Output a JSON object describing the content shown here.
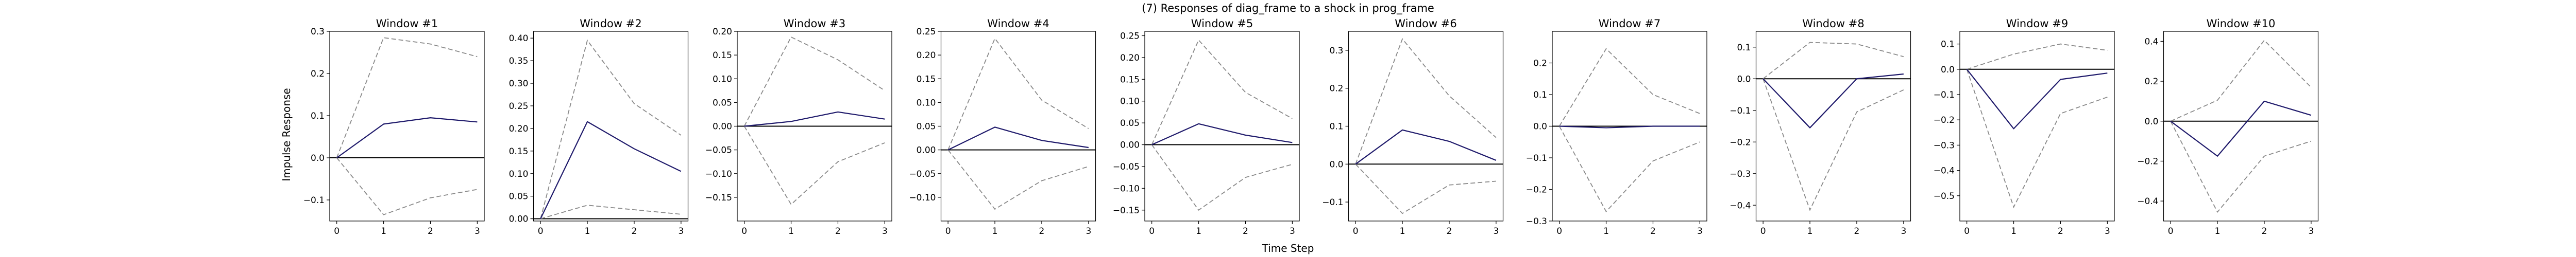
{
  "chart_data": {
    "type": "line",
    "title": "(7) Responses of diag_frame to a shock in prog_frame",
    "xlabel": "Time Step",
    "ylabel": "Impulse Response",
    "x": [
      0,
      1,
      2,
      3
    ],
    "grid": false,
    "panels": [
      {
        "title": "Window #1",
        "ylim": [
          -0.15,
          0.3
        ],
        "yticks": [
          -0.1,
          0.0,
          0.1,
          0.2,
          0.3
        ],
        "ytick_labels": [
          "−0.1",
          "0.0",
          "0.1",
          "0.2",
          "0.3"
        ],
        "series": [
          {
            "role": "irf",
            "values": [
              0.0,
              0.08,
              0.095,
              0.085
            ]
          },
          {
            "role": "upper",
            "values": [
              0.0,
              0.285,
              0.27,
              0.24
            ]
          },
          {
            "role": "lower",
            "values": [
              0.0,
              -0.135,
              -0.095,
              -0.075
            ]
          }
        ]
      },
      {
        "title": "Window #2",
        "ylim": [
          -0.005,
          0.415
        ],
        "yticks": [
          0.0,
          0.05,
          0.1,
          0.15,
          0.2,
          0.25,
          0.3,
          0.35,
          0.4
        ],
        "ytick_labels": [
          "0.00",
          "0.05",
          "0.10",
          "0.15",
          "0.20",
          "0.25",
          "0.30",
          "0.35",
          "0.40"
        ],
        "series": [
          {
            "role": "irf",
            "values": [
              0.0,
              0.215,
              0.155,
              0.105
            ]
          },
          {
            "role": "upper",
            "values": [
              0.0,
              0.395,
              0.255,
              0.185
            ]
          },
          {
            "role": "lower",
            "values": [
              0.0,
              0.03,
              0.02,
              0.01
            ]
          }
        ]
      },
      {
        "title": "Window #3",
        "ylim": [
          -0.2,
          0.2
        ],
        "yticks": [
          -0.15,
          -0.1,
          -0.05,
          0.0,
          0.05,
          0.1,
          0.15,
          0.2
        ],
        "ytick_labels": [
          "−0.15",
          "−0.10",
          "−0.05",
          "0.00",
          "0.05",
          "0.10",
          "0.15",
          "0.20"
        ],
        "series": [
          {
            "role": "irf",
            "values": [
              0.0,
              0.01,
              0.03,
              0.015
            ]
          },
          {
            "role": "upper",
            "values": [
              0.0,
              0.188,
              0.14,
              0.075
            ]
          },
          {
            "role": "lower",
            "values": [
              0.0,
              -0.165,
              -0.075,
              -0.035
            ]
          }
        ]
      },
      {
        "title": "Window #4",
        "ylim": [
          -0.15,
          0.25
        ],
        "yticks": [
          -0.1,
          -0.05,
          0.0,
          0.05,
          0.1,
          0.15,
          0.2,
          0.25
        ],
        "ytick_labels": [
          "−0.10",
          "−0.05",
          "0.00",
          "0.05",
          "0.10",
          "0.15",
          "0.20",
          "0.25"
        ],
        "series": [
          {
            "role": "irf",
            "values": [
              0.0,
              0.048,
              0.02,
              0.005
            ]
          },
          {
            "role": "upper",
            "values": [
              0.0,
              0.235,
              0.105,
              0.045
            ]
          },
          {
            "role": "lower",
            "values": [
              0.0,
              -0.125,
              -0.065,
              -0.035
            ]
          }
        ]
      },
      {
        "title": "Window #5",
        "ylim": [
          -0.175,
          0.26
        ],
        "yticks": [
          -0.15,
          -0.1,
          -0.05,
          0.0,
          0.05,
          0.1,
          0.15,
          0.2,
          0.25
        ],
        "ytick_labels": [
          "−0.15",
          "−0.10",
          "−0.05",
          "0.00",
          "0.05",
          "0.10",
          "0.15",
          "0.20",
          "0.25"
        ],
        "series": [
          {
            "role": "irf",
            "values": [
              0.0,
              0.048,
              0.022,
              0.005
            ]
          },
          {
            "role": "upper",
            "values": [
              0.0,
              0.24,
              0.12,
              0.06
            ]
          },
          {
            "role": "lower",
            "values": [
              0.0,
              -0.15,
              -0.075,
              -0.045
            ]
          }
        ]
      },
      {
        "title": "Window #6",
        "ylim": [
          -0.15,
          0.35
        ],
        "yticks": [
          -0.1,
          0.0,
          0.1,
          0.2,
          0.3
        ],
        "ytick_labels": [
          "−0.1",
          "0.0",
          "0.1",
          "0.2",
          "0.3"
        ],
        "series": [
          {
            "role": "irf",
            "values": [
              0.0,
              0.09,
              0.06,
              0.01
            ]
          },
          {
            "role": "upper",
            "values": [
              0.0,
              0.33,
              0.18,
              0.07
            ]
          },
          {
            "role": "lower",
            "values": [
              0.0,
              -0.13,
              -0.055,
              -0.045
            ]
          }
        ]
      },
      {
        "title": "Window #7",
        "ylim": [
          -0.3,
          0.3
        ],
        "yticks": [
          -0.3,
          -0.2,
          -0.1,
          0.0,
          0.1,
          0.2
        ],
        "ytick_labels": [
          "−0.3",
          "−0.2",
          "−0.1",
          "0.0",
          "0.1",
          "0.2"
        ],
        "series": [
          {
            "role": "irf",
            "values": [
              0.0,
              -0.005,
              0.0,
              0.0
            ]
          },
          {
            "role": "upper",
            "values": [
              0.0,
              0.245,
              0.1,
              0.04
            ]
          },
          {
            "role": "lower",
            "values": [
              0.0,
              -0.27,
              -0.11,
              -0.05
            ]
          }
        ]
      },
      {
        "title": "Window #8",
        "ylim": [
          -0.45,
          0.15
        ],
        "yticks": [
          -0.4,
          -0.3,
          -0.2,
          -0.1,
          0.0,
          0.1
        ],
        "ytick_labels": [
          "−0.4",
          "−0.3",
          "−0.2",
          "−0.1",
          "0.0",
          "0.1"
        ],
        "series": [
          {
            "role": "irf",
            "values": [
              0.0,
              -0.155,
              0.0,
              0.015
            ]
          },
          {
            "role": "upper",
            "values": [
              0.0,
              0.115,
              0.11,
              0.07
            ]
          },
          {
            "role": "lower",
            "values": [
              0.0,
              -0.415,
              -0.105,
              -0.035
            ]
          }
        ]
      },
      {
        "title": "Window #9",
        "ylim": [
          -0.6,
          0.15
        ],
        "yticks": [
          -0.5,
          -0.4,
          -0.3,
          -0.2,
          -0.1,
          0.0,
          0.1
        ],
        "ytick_labels": [
          "−0.5",
          "−0.4",
          "−0.3",
          "−0.2",
          "−0.1",
          "0.0",
          "0.1"
        ],
        "series": [
          {
            "role": "irf",
            "values": [
              0.0,
              -0.235,
              -0.04,
              -0.015
            ]
          },
          {
            "role": "upper",
            "values": [
              0.0,
              0.06,
              0.1,
              0.075
            ]
          },
          {
            "role": "lower",
            "values": [
              0.0,
              -0.545,
              -0.175,
              -0.11
            ]
          }
        ]
      },
      {
        "title": "Window #10",
        "ylim": [
          -0.5,
          0.45
        ],
        "yticks": [
          -0.4,
          -0.2,
          0.0,
          0.2,
          0.4
        ],
        "ytick_labels": [
          "−0.4",
          "−0.2",
          "0.0",
          "0.2",
          "0.4"
        ],
        "series": [
          {
            "role": "irf",
            "values": [
              0.0,
              -0.175,
              0.1,
              0.03
            ]
          },
          {
            "role": "upper",
            "values": [
              0.0,
              0.105,
              0.405,
              0.17
            ]
          },
          {
            "role": "lower",
            "values": [
              0.0,
              -0.455,
              -0.175,
              -0.1
            ]
          }
        ]
      }
    ]
  }
}
